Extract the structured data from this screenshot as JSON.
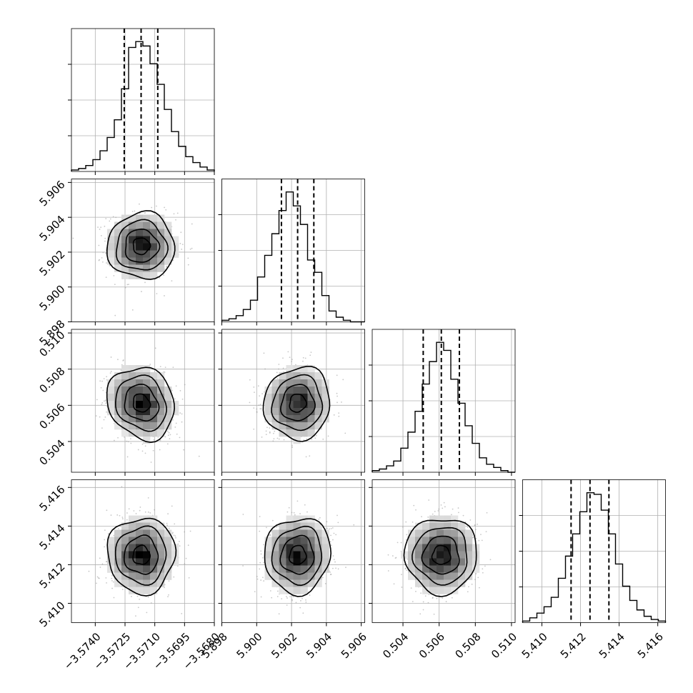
{
  "chart_data": {
    "type": "corner",
    "n_params": 4,
    "grid": true,
    "parameters": [
      {
        "range": [
          -3.5752,
          -3.568
        ],
        "ticks": [
          -3.574,
          -3.5725,
          -3.571,
          -3.5695,
          -3.568
        ],
        "tick_labels": [
          "−3.5740",
          "−3.5725",
          "−3.5710",
          "−3.5695",
          "−3.5680"
        ],
        "quantiles": [
          -3.57254,
          -3.57169,
          -3.57085
        ],
        "mean": -3.57168,
        "sd": 0.00085,
        "hist_counts": [
          1,
          2,
          4,
          8,
          14,
          23,
          35,
          56,
          84,
          88,
          85,
          73,
          59,
          42,
          27,
          17,
          10,
          6,
          3,
          1
        ]
      },
      {
        "range": [
          5.898,
          5.9062
        ],
        "ticks": [
          5.898,
          5.9,
          5.902,
          5.904,
          5.906
        ],
        "tick_labels": [
          "5.898",
          "5.900",
          "5.902",
          "5.904",
          "5.906"
        ],
        "quantiles": [
          5.90142,
          5.90235,
          5.90328
        ],
        "mean": 5.90235,
        "sd": 0.00095,
        "hist_counts": [
          1,
          2,
          4,
          8,
          14,
          29,
          43,
          57,
          72,
          84,
          75,
          63,
          40,
          32,
          17,
          7,
          3,
          1,
          0,
          0
        ]
      },
      {
        "range": [
          0.5023,
          0.5102
        ],
        "ticks": [
          0.504,
          0.506,
          0.508,
          0.51
        ],
        "tick_labels": [
          "0.504",
          "0.506",
          "0.508",
          "0.510"
        ],
        "quantiles": [
          0.50512,
          0.50612,
          0.50712
        ],
        "mean": 0.50612,
        "sd": 0.001,
        "hist_counts": [
          1,
          2,
          4,
          7,
          15,
          25,
          38,
          55,
          69,
          81,
          76,
          58,
          43,
          29,
          18,
          9,
          5,
          3,
          1,
          0
        ]
      },
      {
        "range": [
          5.409,
          5.4164
        ],
        "ticks": [
          5.41,
          5.412,
          5.414,
          5.416
        ],
        "tick_labels": [
          "5.410",
          "5.412",
          "5.414",
          "5.416"
        ],
        "quantiles": [
          5.41151,
          5.41249,
          5.41347
        ],
        "mean": 5.41249,
        "sd": 0.00098,
        "hist_counts": [
          1,
          3,
          6,
          10,
          16,
          28,
          42,
          56,
          70,
          82,
          81,
          71,
          56,
          37,
          23,
          14,
          8,
          4,
          2,
          1
        ]
      }
    ],
    "correlations": {
      "1-0": 0.0,
      "2-0": -0.15,
      "2-1": 0.05,
      "3-0": 0.0,
      "3-1": 0.05,
      "3-2": 0.0
    },
    "contour_levels_sigma": [
      0.5,
      1.0,
      1.5,
      2.0
    ],
    "colors": {
      "hist": "#000000",
      "density": "#000000",
      "points": "#9a9a9a",
      "grid": "#b0b0b0"
    }
  }
}
